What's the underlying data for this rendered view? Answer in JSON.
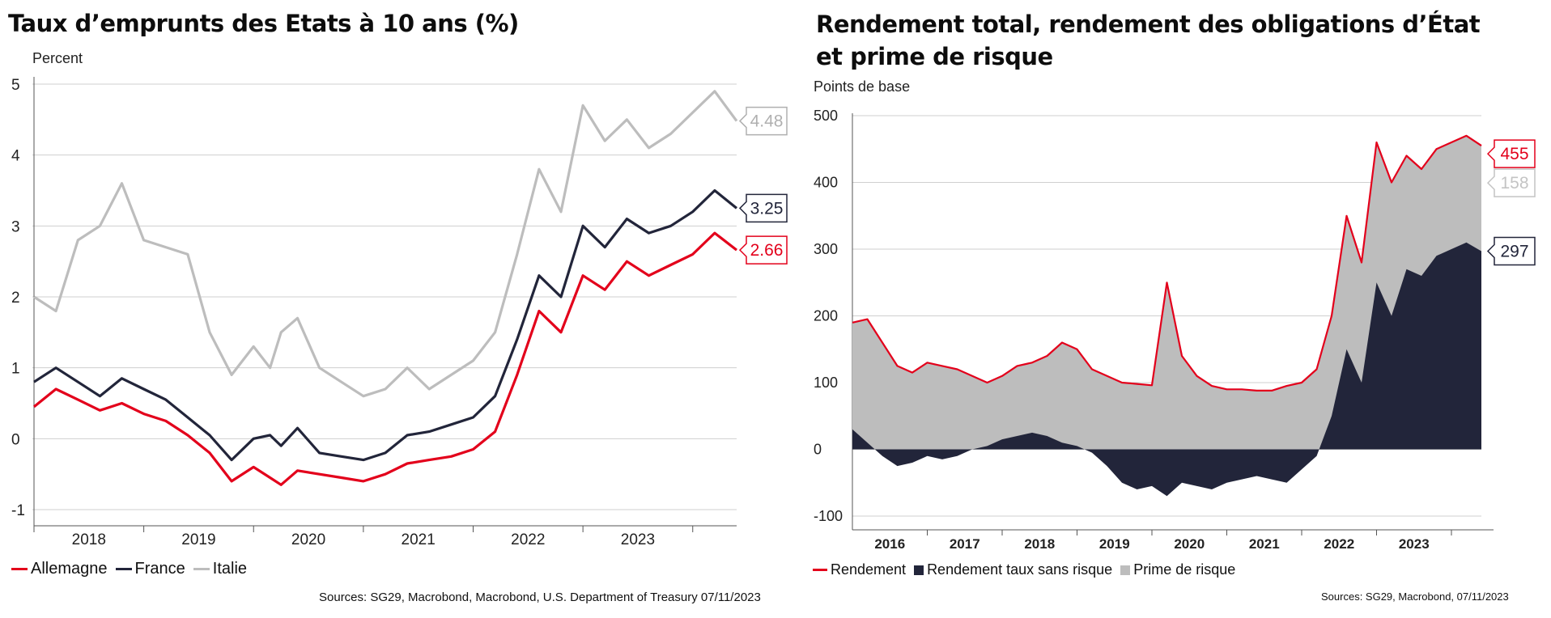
{
  "left_panel": {
    "title": "Taux d’emprunts des Etats à 10 ans (%)",
    "unit": "Percent",
    "source": "Sources: SG29, Macrobond, Macrobond, U.S. Department of Treasury 07/11/2023"
  },
  "right_panel": {
    "title_line1": "Rendement total, rendement des obligations d’État",
    "title_line2": "et prime de risque",
    "unit": "Points de base",
    "source": "Sources: SG29, Macrobond,  07/11/2023"
  },
  "colors": {
    "red": "#e3001b",
    "navy": "#22253a",
    "gray": "#bdbdbd",
    "grid": "#cfcfcf"
  },
  "chart_data": [
    {
      "type": "line",
      "title": "Taux d’emprunts des Etats à 10 ans (%)",
      "ylabel": "Percent",
      "ylim": [
        -1,
        5
      ],
      "yticks": [
        "5",
        "4",
        "3",
        "2",
        "1",
        "0",
        "-1"
      ],
      "x_labels": [
        "2018",
        "2019",
        "2020",
        "2021",
        "2022",
        "2023"
      ],
      "x_range": [
        2017.5,
        2023.9
      ],
      "grid": true,
      "legend": "bottom-left",
      "x": [
        2017.5,
        2017.7,
        2017.9,
        2018.1,
        2018.3,
        2018.5,
        2018.7,
        2018.9,
        2019.1,
        2019.3,
        2019.5,
        2019.65,
        2019.75,
        2019.9,
        2020.1,
        2020.3,
        2020.5,
        2020.7,
        2020.9,
        2021.1,
        2021.3,
        2021.5,
        2021.7,
        2021.9,
        2022.1,
        2022.3,
        2022.5,
        2022.7,
        2022.9,
        2023.1,
        2023.3,
        2023.5,
        2023.7,
        2023.9
      ],
      "series": [
        {
          "name": "Allemagne",
          "color": "#e3001b",
          "last_label": "2.66",
          "values": [
            0.45,
            0.7,
            0.55,
            0.4,
            0.5,
            0.35,
            0.25,
            0.05,
            -0.2,
            -0.6,
            -0.4,
            -0.55,
            -0.65,
            -0.45,
            -0.5,
            -0.55,
            -0.6,
            -0.5,
            -0.35,
            -0.3,
            -0.25,
            -0.15,
            0.1,
            0.9,
            1.8,
            1.5,
            2.3,
            2.1,
            2.5,
            2.3,
            2.45,
            2.6,
            2.9,
            2.66
          ]
        },
        {
          "name": "France",
          "color": "#22253a",
          "last_label": "3.25",
          "values": [
            0.8,
            1.0,
            0.8,
            0.6,
            0.85,
            0.7,
            0.55,
            0.3,
            0.05,
            -0.3,
            0.0,
            0.05,
            -0.1,
            0.15,
            -0.2,
            -0.25,
            -0.3,
            -0.2,
            0.05,
            0.1,
            0.2,
            0.3,
            0.6,
            1.4,
            2.3,
            2.0,
            3.0,
            2.7,
            3.1,
            2.9,
            3.0,
            3.2,
            3.5,
            3.25
          ]
        },
        {
          "name": "Italie",
          "color": "#bdbdbd",
          "last_label": "4.48",
          "values": [
            2.0,
            1.8,
            2.8,
            3.0,
            3.6,
            2.8,
            2.7,
            2.6,
            1.5,
            0.9,
            1.3,
            1.0,
            1.5,
            1.7,
            1.0,
            0.8,
            0.6,
            0.7,
            1.0,
            0.7,
            0.9,
            1.1,
            1.5,
            2.6,
            3.8,
            3.2,
            4.7,
            4.2,
            4.5,
            4.1,
            4.3,
            4.6,
            4.9,
            4.48
          ]
        }
      ]
    },
    {
      "type": "area",
      "title": "Rendement total, rendement des obligations d’État et prime de risque",
      "ylabel": "Points de base",
      "ylim": [
        -100,
        500
      ],
      "yticks": [
        "500",
        "400",
        "300",
        "200",
        "100",
        "0",
        "-100"
      ],
      "x_labels": [
        "2016",
        "2017",
        "2018",
        "2019",
        "2020",
        "2021",
        "2022",
        "2023"
      ],
      "x_range": [
        2015.5,
        2023.9
      ],
      "grid": true,
      "legend": "bottom-left",
      "x": [
        2015.5,
        2015.7,
        2015.9,
        2016.1,
        2016.3,
        2016.5,
        2016.7,
        2016.9,
        2017.1,
        2017.3,
        2017.5,
        2017.7,
        2017.9,
        2018.1,
        2018.3,
        2018.5,
        2018.7,
        2018.9,
        2019.1,
        2019.3,
        2019.5,
        2019.7,
        2019.9,
        2020.1,
        2020.3,
        2020.5,
        2020.7,
        2020.9,
        2021.1,
        2021.3,
        2021.5,
        2021.7,
        2021.9,
        2022.1,
        2022.3,
        2022.5,
        2022.7,
        2022.9,
        2023.1,
        2023.3,
        2023.5,
        2023.7,
        2023.9
      ],
      "series": [
        {
          "name": "Rendement",
          "color": "#e3001b",
          "last_label": "455",
          "values": [
            190,
            195,
            160,
            125,
            115,
            130,
            125,
            120,
            110,
            100,
            110,
            125,
            130,
            140,
            160,
            150,
            120,
            110,
            100,
            98,
            96,
            250,
            140,
            110,
            95,
            90,
            90,
            88,
            88,
            95,
            100,
            120,
            200,
            350,
            280,
            460,
            400,
            440,
            420,
            450,
            460,
            470,
            455
          ]
        },
        {
          "name": "Rendement taux sans risque",
          "color": "#22253a",
          "last_label": "297",
          "values": [
            30,
            10,
            -10,
            -25,
            -20,
            -10,
            -15,
            -10,
            0,
            5,
            15,
            20,
            25,
            20,
            10,
            5,
            -5,
            -25,
            -50,
            -60,
            -55,
            -70,
            -50,
            -55,
            -60,
            -50,
            -45,
            -40,
            -45,
            -50,
            -30,
            -10,
            50,
            150,
            100,
            250,
            200,
            270,
            260,
            290,
            300,
            310,
            297
          ]
        },
        {
          "name": "Prime de risque",
          "color": "#bdbdbd",
          "last_label": "158"
        }
      ]
    }
  ]
}
